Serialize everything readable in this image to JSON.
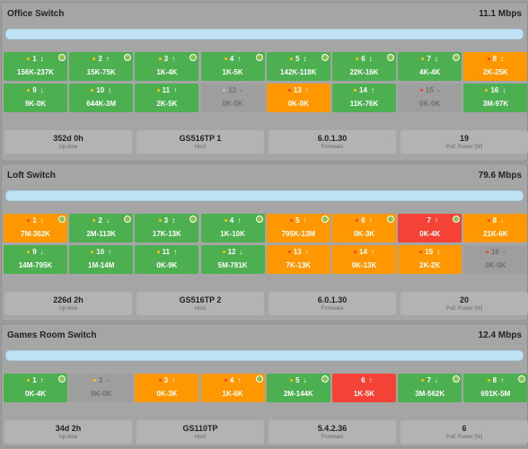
{
  "switches": [
    {
      "title": "Office Switch",
      "speed": "11.1 Mbps",
      "ports": [
        {
          "num": "1",
          "arrow": "↕",
          "traffic": "156K-237K",
          "status": "green",
          "dot": "orange",
          "poe": true
        },
        {
          "num": "2",
          "arrow": "↑",
          "traffic": "15K-75K",
          "status": "green",
          "dot": "orange",
          "poe": true
        },
        {
          "num": "3",
          "arrow": "↑",
          "traffic": "1K-4K",
          "status": "green",
          "dot": "orange",
          "poe": true
        },
        {
          "num": "4",
          "arrow": "↑",
          "traffic": "1K-5K",
          "status": "green",
          "dot": "orange",
          "poe": true
        },
        {
          "num": "5",
          "arrow": "↕",
          "traffic": "142K-118K",
          "status": "green",
          "dot": "orange",
          "poe": true
        },
        {
          "num": "6",
          "arrow": "↕",
          "traffic": "22K-16K",
          "status": "green",
          "dot": "orange",
          "poe": true
        },
        {
          "num": "7",
          "arrow": "↕",
          "traffic": "4K-4K",
          "status": "green",
          "dot": "orange",
          "poe": true
        },
        {
          "num": "8",
          "arrow": "↕",
          "traffic": "2K-25K",
          "status": "orange",
          "dot": "red",
          "poe": false
        },
        {
          "num": "9",
          "arrow": "↓",
          "traffic": "9K-0K",
          "status": "green",
          "dot": "orange",
          "poe": false
        },
        {
          "num": "10",
          "arrow": "↕",
          "traffic": "644K-3M",
          "status": "green",
          "dot": "orange",
          "poe": false
        },
        {
          "num": "11",
          "arrow": "↑",
          "traffic": "2K-5K",
          "status": "green",
          "dot": "orange",
          "poe": false
        },
        {
          "num": "12",
          "arrow": "-",
          "traffic": "0K-0K",
          "status": "gray",
          "dot": "gray",
          "poe": false
        },
        {
          "num": "13",
          "arrow": "↑",
          "traffic": "0K-0K",
          "status": "orange",
          "dot": "red",
          "poe": false
        },
        {
          "num": "14",
          "arrow": "↑",
          "traffic": "11K-76K",
          "status": "green",
          "dot": "orange",
          "poe": false
        },
        {
          "num": "15",
          "arrow": "-",
          "traffic": "0K-0K",
          "status": "gray",
          "dot": "red",
          "poe": false
        },
        {
          "num": "16",
          "arrow": "↓",
          "traffic": "3M-97K",
          "status": "green",
          "dot": "orange",
          "poe": false
        }
      ],
      "info": [
        {
          "value": "352d 0h",
          "label": "Up-time"
        },
        {
          "value": "GS516TP 1",
          "label": "Host"
        },
        {
          "value": "6.0.1.30",
          "label": "Firmware"
        },
        {
          "value": "19",
          "label": "PoE Power [W]"
        }
      ]
    },
    {
      "title": "Loft Switch",
      "speed": "79.6 Mbps",
      "ports": [
        {
          "num": "1",
          "arrow": "↓",
          "traffic": "7M-362K",
          "status": "orange",
          "dot": "red",
          "poe": true
        },
        {
          "num": "2",
          "arrow": "↓",
          "traffic": "2M-113K",
          "status": "green",
          "dot": "orange",
          "poe": true
        },
        {
          "num": "3",
          "arrow": "↕",
          "traffic": "17K-13K",
          "status": "green",
          "dot": "orange",
          "poe": true
        },
        {
          "num": "4",
          "arrow": "↑",
          "traffic": "1K-10K",
          "status": "green",
          "dot": "orange",
          "poe": true
        },
        {
          "num": "5",
          "arrow": "↑",
          "traffic": "795K-13M",
          "status": "orange",
          "dot": "red",
          "poe": true
        },
        {
          "num": "6",
          "arrow": "↑",
          "traffic": "0K-3K",
          "status": "orange",
          "dot": "red",
          "poe": true
        },
        {
          "num": "7",
          "arrow": "↑",
          "traffic": "0K-4K",
          "status": "red",
          "dot": "red",
          "poe": true
        },
        {
          "num": "8",
          "arrow": "↓",
          "traffic": "21K-6K",
          "status": "orange",
          "dot": "red",
          "poe": false
        },
        {
          "num": "9",
          "arrow": "↓",
          "traffic": "14M-795K",
          "status": "green",
          "dot": "orange",
          "poe": false
        },
        {
          "num": "10",
          "arrow": "↑",
          "traffic": "1M-14M",
          "status": "green",
          "dot": "orange",
          "poe": false
        },
        {
          "num": "11",
          "arrow": "↑",
          "traffic": "0K-9K",
          "status": "green",
          "dot": "orange",
          "poe": false
        },
        {
          "num": "12",
          "arrow": "↓",
          "traffic": "5M-781K",
          "status": "green",
          "dot": "orange",
          "poe": false
        },
        {
          "num": "13",
          "arrow": "↑",
          "traffic": "7K-13K",
          "status": "orange",
          "dot": "red",
          "poe": false
        },
        {
          "num": "14",
          "arrow": "↑",
          "traffic": "0K-13K",
          "status": "orange",
          "dot": "red",
          "poe": false
        },
        {
          "num": "15",
          "arrow": "↕",
          "traffic": "2K-2K",
          "status": "orange",
          "dot": "red",
          "poe": false
        },
        {
          "num": "16",
          "arrow": "-",
          "traffic": "0K-0K",
          "status": "gray",
          "dot": "red",
          "poe": false
        }
      ],
      "info": [
        {
          "value": "226d 2h",
          "label": "Up-time"
        },
        {
          "value": "GS516TP 2",
          "label": "Host"
        },
        {
          "value": "6.0.1.30",
          "label": "Firmware"
        },
        {
          "value": "20",
          "label": "PoE Power [W]"
        }
      ]
    },
    {
      "title": "Games Room Switch",
      "speed": "12.4 Mbps",
      "ports": [
        {
          "num": "1",
          "arrow": "↑",
          "traffic": "0K-4K",
          "status": "green",
          "dot": "orange",
          "poe": true
        },
        {
          "num": "2",
          "arrow": "-",
          "traffic": "0K-0K",
          "status": "gray",
          "dot": "orange",
          "poe": false
        },
        {
          "num": "3",
          "arrow": "↑",
          "traffic": "0K-3K",
          "status": "orange",
          "dot": "red",
          "poe": false
        },
        {
          "num": "4",
          "arrow": "↑",
          "traffic": "1K-6K",
          "status": "orange",
          "dot": "red",
          "poe": true
        },
        {
          "num": "5",
          "arrow": "↓",
          "traffic": "2M-144K",
          "status": "green",
          "dot": "orange",
          "poe": true
        },
        {
          "num": "6",
          "arrow": "↑",
          "traffic": "1K-5K",
          "status": "red",
          "dot": "red",
          "poe": false
        },
        {
          "num": "7",
          "arrow": "↓",
          "traffic": "3M-562K",
          "status": "green",
          "dot": "orange",
          "poe": true
        },
        {
          "num": "8",
          "arrow": "↑",
          "traffic": "691K-5M",
          "status": "green",
          "dot": "orange",
          "poe": true
        }
      ],
      "info": [
        {
          "value": "34d 2h",
          "label": "Up-time"
        },
        {
          "value": "GS110TP",
          "label": "Host"
        },
        {
          "value": "5.4.2.36",
          "label": "Firmware"
        },
        {
          "value": "6",
          "label": "PoE Power [W]"
        }
      ]
    }
  ]
}
